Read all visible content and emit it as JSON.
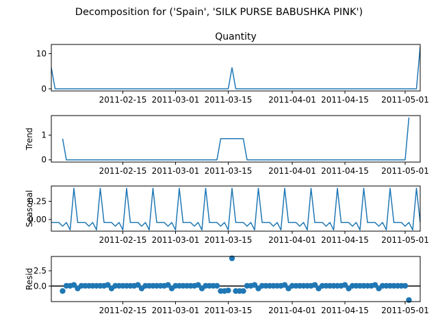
{
  "figure": {
    "suptitle": "Decomposition for ('Spain', 'SILK PURSE BABUSHKA PINK')"
  },
  "chart_data": {
    "type": "line",
    "x_start": "2011-01-27",
    "x_end": "2011-05-05",
    "x_ticks": [
      "2011-02-15",
      "2011-03-01",
      "2011-03-15",
      "2011-04-01",
      "2011-04-15",
      "2011-05-01"
    ],
    "x_tick_labels": [
      "2011-02-15",
      "2011-03-01",
      "2011-03-15",
      "2011-04-01",
      "2011-04-15",
      "2011-05-01"
    ],
    "color": "#1f77b4",
    "panels": [
      {
        "title": "Quantity",
        "ylabel": "",
        "kind": "line",
        "ylim": [
          -0.6,
          12.6
        ],
        "yticks": [
          0,
          10
        ],
        "points": [
          [
            "2011-01-27",
            6
          ],
          [
            "2011-01-28",
            0
          ],
          [
            "2011-03-15",
            0
          ],
          [
            "2011-03-16",
            6
          ],
          [
            "2011-03-17",
            0
          ],
          [
            "2011-05-04",
            0
          ],
          [
            "2011-05-05",
            12
          ]
        ]
      },
      {
        "title": "",
        "ylabel": "Trend",
        "kind": "line",
        "ylim": [
          -0.09,
          1.79
        ],
        "yticks": [
          0,
          1
        ],
        "points": [
          [
            "2011-01-30",
            0.857
          ],
          [
            "2011-01-31",
            0
          ],
          [
            "2011-03-12",
            0
          ],
          [
            "2011-03-13",
            0.857
          ],
          [
            "2011-03-19",
            0.857
          ],
          [
            "2011-03-20",
            0
          ],
          [
            "2011-05-01",
            0
          ],
          [
            "2011-05-02",
            1.714
          ]
        ]
      },
      {
        "title": "",
        "ylabel": "Seasonal",
        "kind": "seasonal",
        "ylim": [
          -0.16,
          0.46
        ],
        "yticks": [
          0,
          0.25
        ],
        "ytick_labels": [
          "0.00",
          "0.25"
        ],
        "pattern_start": "2011-01-27",
        "pattern": [
          -0.041,
          -0.041,
          -0.041,
          -0.092,
          -0.041,
          -0.143,
          0.429
        ]
      },
      {
        "title": "",
        "ylabel": "Resid",
        "kind": "scatter",
        "ylim": [
          -2.55,
          4.85
        ],
        "yticks": [
          0,
          2.5
        ],
        "ytick_labels": [
          "0.0",
          "2.5"
        ],
        "zero_line": true,
        "points": [
          [
            "2011-01-30",
            -0.82
          ],
          [
            "2011-01-31",
            0.04
          ],
          [
            "2011-02-01",
            0.04
          ],
          [
            "2011-02-02",
            0.18
          ],
          [
            "2011-02-03",
            -0.39
          ],
          [
            "2011-02-04",
            0.04
          ],
          [
            "2011-02-05",
            0.04
          ],
          [
            "2011-02-06",
            0.04
          ],
          [
            "2011-02-07",
            0.04
          ],
          [
            "2011-02-08",
            0.04
          ],
          [
            "2011-02-09",
            0.04
          ],
          [
            "2011-02-10",
            0.04
          ],
          [
            "2011-02-11",
            0.18
          ],
          [
            "2011-02-12",
            -0.39
          ],
          [
            "2011-02-13",
            0.04
          ],
          [
            "2011-02-14",
            0.04
          ],
          [
            "2011-02-15",
            0.04
          ],
          [
            "2011-02-16",
            0.04
          ],
          [
            "2011-02-17",
            0.04
          ],
          [
            "2011-02-18",
            0.04
          ],
          [
            "2011-02-19",
            0.18
          ],
          [
            "2011-02-20",
            -0.39
          ],
          [
            "2011-02-21",
            0.04
          ],
          [
            "2011-02-22",
            0.04
          ],
          [
            "2011-02-23",
            0.04
          ],
          [
            "2011-02-24",
            0.04
          ],
          [
            "2011-02-25",
            0.04
          ],
          [
            "2011-02-26",
            0.04
          ],
          [
            "2011-02-27",
            0.18
          ],
          [
            "2011-02-28",
            -0.39
          ],
          [
            "2011-03-01",
            0.04
          ],
          [
            "2011-03-02",
            0.04
          ],
          [
            "2011-03-03",
            0.04
          ],
          [
            "2011-03-04",
            0.04
          ],
          [
            "2011-03-05",
            0.04
          ],
          [
            "2011-03-06",
            0.04
          ],
          [
            "2011-03-07",
            0.18
          ],
          [
            "2011-03-08",
            -0.39
          ],
          [
            "2011-03-09",
            0.04
          ],
          [
            "2011-03-10",
            0.04
          ],
          [
            "2011-03-11",
            0.04
          ],
          [
            "2011-03-12",
            0.04
          ],
          [
            "2011-03-13",
            -0.82
          ],
          [
            "2011-03-14",
            -0.82
          ],
          [
            "2011-03-15",
            -0.72
          ],
          [
            "2011-03-16",
            4.55
          ],
          [
            "2011-03-17",
            -0.82
          ],
          [
            "2011-03-18",
            -0.82
          ],
          [
            "2011-03-19",
            -0.82
          ],
          [
            "2011-03-20",
            0.04
          ],
          [
            "2011-03-21",
            0.04
          ],
          [
            "2011-03-22",
            0.18
          ],
          [
            "2011-03-23",
            -0.39
          ],
          [
            "2011-03-24",
            0.04
          ],
          [
            "2011-03-25",
            0.04
          ],
          [
            "2011-03-26",
            0.04
          ],
          [
            "2011-03-27",
            0.04
          ],
          [
            "2011-03-28",
            0.04
          ],
          [
            "2011-03-29",
            0.04
          ],
          [
            "2011-03-30",
            0.18
          ],
          [
            "2011-03-31",
            -0.39
          ],
          [
            "2011-04-01",
            0.04
          ],
          [
            "2011-04-02",
            0.04
          ],
          [
            "2011-04-03",
            0.04
          ],
          [
            "2011-04-04",
            0.04
          ],
          [
            "2011-04-05",
            0.04
          ],
          [
            "2011-04-06",
            0.04
          ],
          [
            "2011-04-07",
            0.18
          ],
          [
            "2011-04-08",
            -0.39
          ],
          [
            "2011-04-09",
            0.04
          ],
          [
            "2011-04-10",
            0.04
          ],
          [
            "2011-04-11",
            0.04
          ],
          [
            "2011-04-12",
            0.04
          ],
          [
            "2011-04-13",
            0.04
          ],
          [
            "2011-04-14",
            0.04
          ],
          [
            "2011-04-15",
            0.18
          ],
          [
            "2011-04-16",
            -0.39
          ],
          [
            "2011-04-17",
            0.04
          ],
          [
            "2011-04-18",
            0.04
          ],
          [
            "2011-04-19",
            0.04
          ],
          [
            "2011-04-20",
            0.04
          ],
          [
            "2011-04-21",
            0.04
          ],
          [
            "2011-04-22",
            0.04
          ],
          [
            "2011-04-23",
            0.18
          ],
          [
            "2011-04-24",
            -0.39
          ],
          [
            "2011-04-25",
            0.04
          ],
          [
            "2011-04-26",
            0.04
          ],
          [
            "2011-04-27",
            0.04
          ],
          [
            "2011-04-28",
            0.04
          ],
          [
            "2011-04-29",
            0.04
          ],
          [
            "2011-04-30",
            0.04
          ],
          [
            "2011-05-01",
            0.04
          ],
          [
            "2011-05-02",
            -2.3
          ]
        ]
      }
    ]
  }
}
